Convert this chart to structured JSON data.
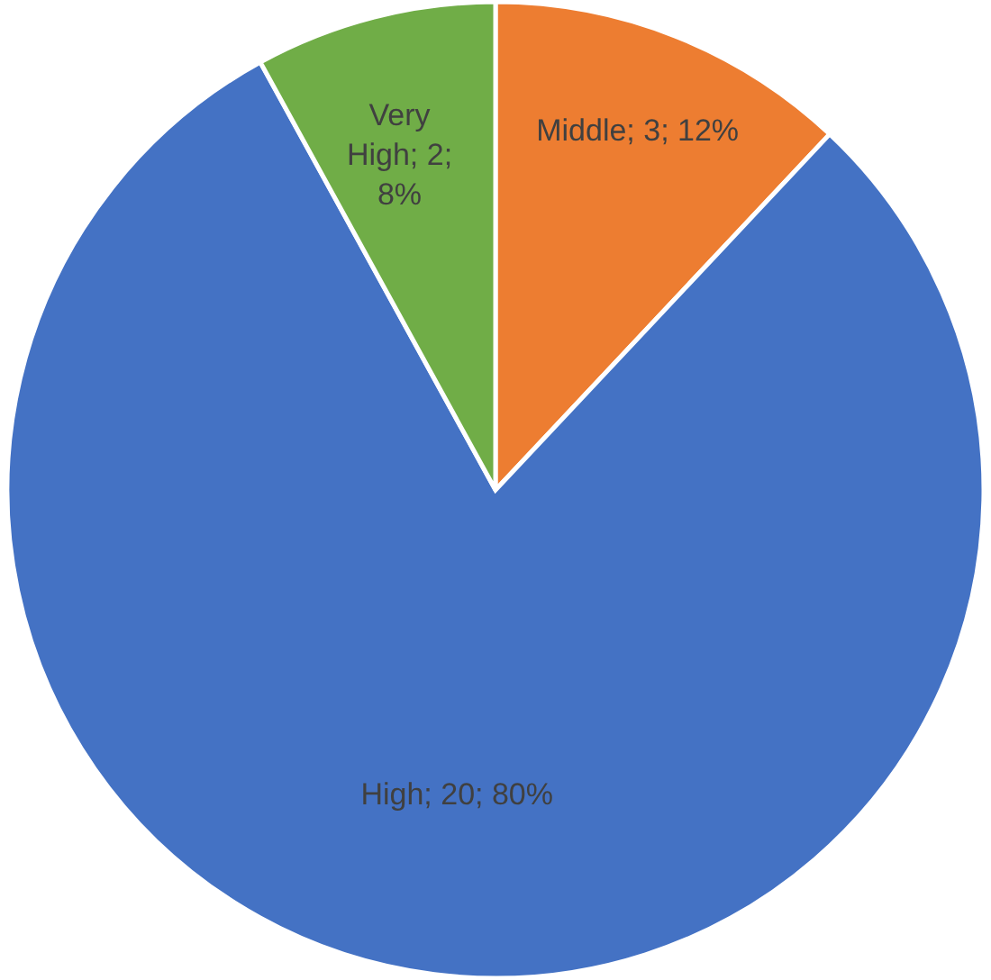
{
  "chart_data": {
    "type": "pie",
    "categories": [
      "Middle",
      "High",
      "Very High"
    ],
    "values": [
      3,
      20,
      2
    ],
    "colors": [
      "#ed7d31",
      "#4472c4",
      "#70ad47"
    ],
    "value_labels": [
      "3; 12%",
      "20; 80%",
      "2; 8%"
    ]
  }
}
